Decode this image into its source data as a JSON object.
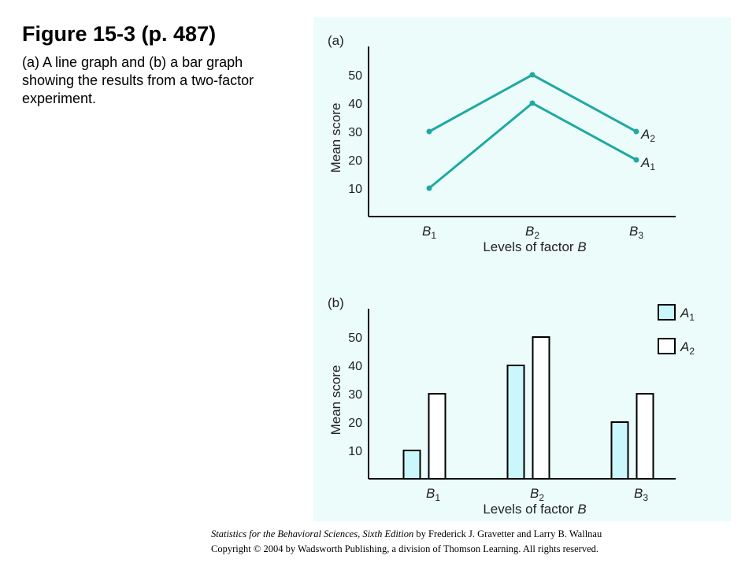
{
  "figure": {
    "title": "Figure 15-3  (p. 487)",
    "caption": "(a) A line graph and (b) a bar graph showing the results from a two-factor experiment."
  },
  "chart_data": [
    {
      "type": "line",
      "panel_label": "(a)",
      "categories": [
        "B1",
        "B2",
        "B3"
      ],
      "series": [
        {
          "name": "A2",
          "values": [
            30,
            50,
            30
          ]
        },
        {
          "name": "A1",
          "values": [
            10,
            40,
            20
          ]
        }
      ],
      "ylabel": "Mean score",
      "xlabel": "Levels of factor B",
      "yticks": [
        10,
        20,
        30,
        40,
        50
      ],
      "ylim": [
        0,
        60
      ],
      "grid": false,
      "legend": "labels at line ends",
      "colors": {
        "line": "#1fa9a2",
        "background": "#ecfcfa"
      }
    },
    {
      "type": "bar",
      "panel_label": "(b)",
      "categories": [
        "B1",
        "B2",
        "B3"
      ],
      "series": [
        {
          "name": "A1",
          "values": [
            10,
            40,
            20
          ]
        },
        {
          "name": "A2",
          "values": [
            30,
            50,
            30
          ]
        }
      ],
      "ylabel": "Mean score",
      "xlabel": "Levels of factor B",
      "yticks": [
        10,
        20,
        30,
        40,
        50
      ],
      "ylim": [
        0,
        60
      ],
      "grid": false,
      "legend": "top-right",
      "colors": {
        "A1": "#c9f7fb",
        "A2": "#ffffff",
        "outline": "#000000"
      }
    }
  ],
  "credit": {
    "book_title": "Statistics for the Behavioral Sciences, Sixth Edition",
    "authors": " by Frederick J. Gravetter and Larry B. Wallnau",
    "copyright": "Copyright © 2004 by Wadsworth Publishing, a division of Thomson Learning.  All rights reserved."
  }
}
